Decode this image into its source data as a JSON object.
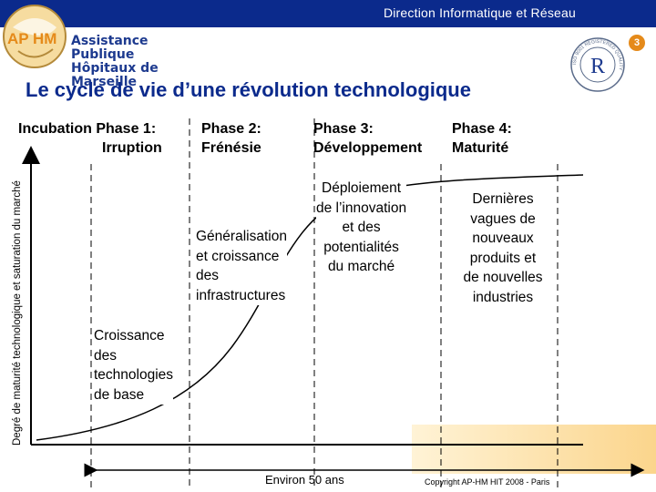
{
  "header": {
    "title": "Direction Informatique et Réseau",
    "page_number": "3"
  },
  "logo": {
    "initials": "AP HM",
    "name_line1": "Assistance Publique",
    "name_line2": "Hôpitaux de Marseille"
  },
  "certification": {
    "ring_text": "ISO 9001 REGISTERED QUALITY",
    "mark": "R"
  },
  "slide": {
    "title": "Le cycle de vie d’une révolution technologique",
    "y_axis_label": "Degré de maturité technologique et saturation du marché",
    "x_axis_note": "Environ 50 ans",
    "copyright": "Copyright AP-HM   HIT 2008 - Paris"
  },
  "phases": [
    {
      "line1": "Incubation Phase 1:",
      "line2": "Irruption"
    },
    {
      "line1": "Phase 2:",
      "line2": "Frénésie"
    },
    {
      "line1": "Phase 3:",
      "line2": "Développement"
    },
    {
      "line1": "Phase 4:",
      "line2": "Maturité"
    }
  ],
  "annotations": [
    {
      "lines": [
        "Croissance",
        "des",
        "technologies",
        "de base"
      ]
    },
    {
      "lines": [
        "Généralisation",
        "et croissance",
        "des",
        "infrastructures"
      ]
    },
    {
      "lines": [
        "Déploiement",
        "de l’innovation",
        "et des",
        "potentialités",
        "du marché"
      ]
    },
    {
      "lines": [
        "Dernières",
        "vagues de",
        "nouveaux",
        "produits et",
        "de nouvelles",
        "industries"
      ]
    }
  ],
  "colors": {
    "header_bar": "#0b2a8c",
    "title": "#0b2a8c",
    "badge": "#e58a1a",
    "corner_gradient": "#fbd58c"
  }
}
